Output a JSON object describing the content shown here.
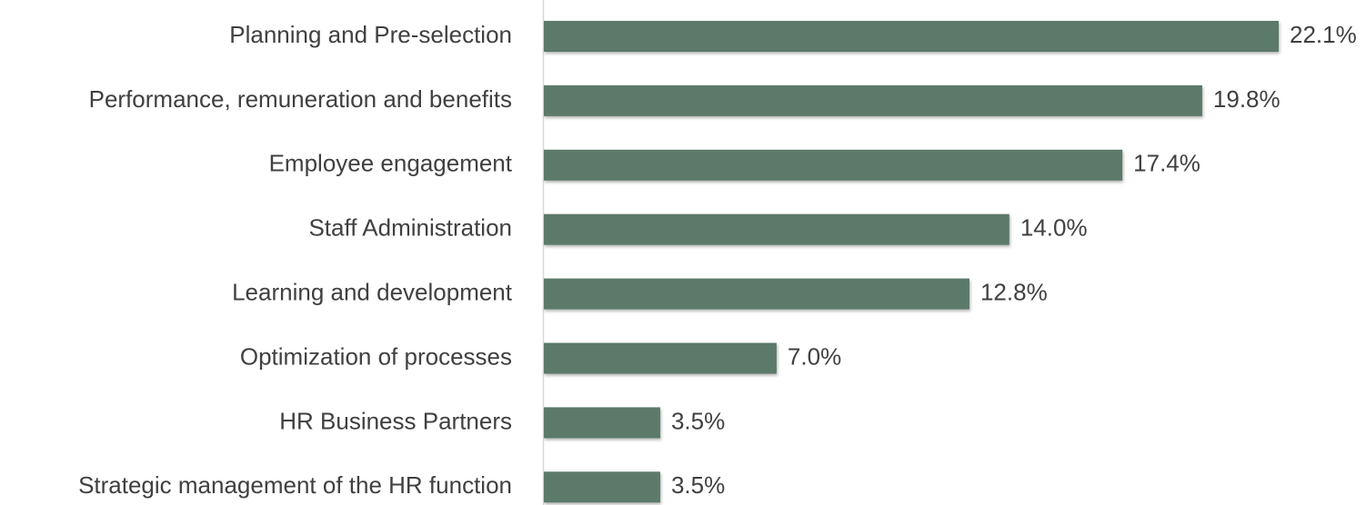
{
  "chart_data": {
    "type": "hbar",
    "categories": [
      "Planning and Pre-selection",
      "Performance, remuneration and benefits",
      "Employee engagement",
      "Staff Administration",
      "Learning and development",
      "Optimization of processes",
      "HR Business Partners",
      "Strategic management of the HR function"
    ],
    "values": [
      22.1,
      19.8,
      17.4,
      14.0,
      12.8,
      7.0,
      3.5,
      3.5
    ],
    "value_labels": [
      "22.1%",
      "19.8%",
      "17.4%",
      "14.0%",
      "12.8%",
      "7.0%",
      "3.5%",
      "3.5%"
    ],
    "color": "#5b7a6b"
  }
}
